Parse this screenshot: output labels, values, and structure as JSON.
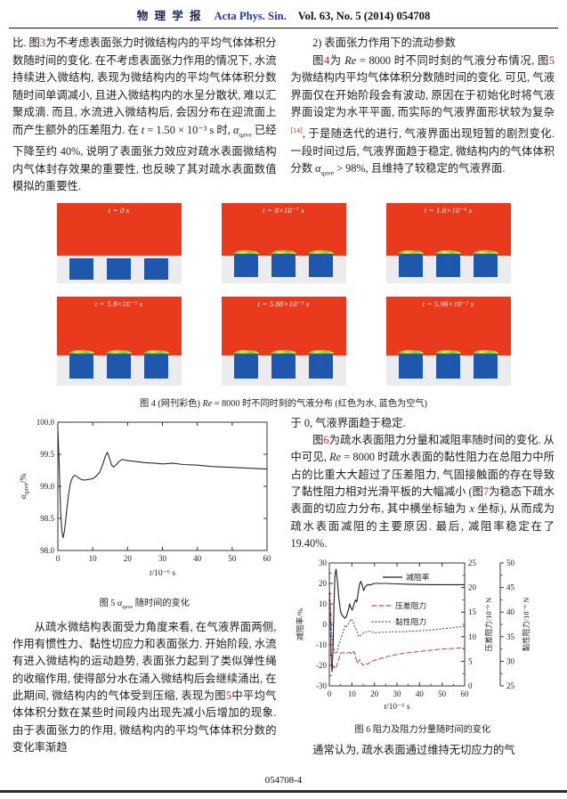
{
  "header": {
    "journal_cn": "物 理 学 报",
    "journal_en": "Acta Phys. Sin.",
    "issue": "Vol. 63, No. 5 (2014)   054708"
  },
  "top_left_par": [
    {
      "t": "比. 图",
      "s": "p"
    },
    {
      "t": "3",
      "s": "r"
    },
    {
      "t": "为不考虑表面张力时微结构内的平均气体体积分数随时间的变化. 在不考虑表面张力作用的情况下, 水流持续进入微结构, 表现为微结构内的平均气体体积分数随时间单调减小, 且进入微结构内的水呈分散状, 难以汇聚成滴. 而且, 水流进入微结构后, 会因分布在迎流面上而产生额外的压差阻力. 在 ",
      "s": "p"
    },
    {
      "t": "t",
      "s": "i"
    },
    {
      "t": " = 1.50 × 10⁻³ s 时, ",
      "s": "p"
    },
    {
      "t": "α",
      "s": "i"
    },
    {
      "t": "qave",
      "s": "sub"
    },
    {
      "t": " 已经下降至约 40%, 说明了表面张力效应对疏水表面微结构内气体封存效果的重要性, 也反映了其对疏水表面数值模拟的重要性.",
      "s": "p"
    }
  ],
  "top_right_par1": [
    {
      "t": "2) 表面张力作用下的流动参数",
      "s": "p"
    }
  ],
  "top_right_par2": [
    {
      "t": "图",
      "s": "p"
    },
    {
      "t": "4",
      "s": "r"
    },
    {
      "t": "为 ",
      "s": "p"
    },
    {
      "t": "Re",
      "s": "i"
    },
    {
      "t": " = 8000 时不同时刻的气液分布情况, 图",
      "s": "p"
    },
    {
      "t": "5",
      "s": "r"
    },
    {
      "t": "为微结构内平均气体体积分数随时间的变化. 可见, 气液界面仅在开始阶段会有波动, 原因在于初始化时将气液界面设定为水平平面, 而实际的气液界面形状较为复杂",
      "s": "p"
    },
    {
      "t": "[14]",
      "s": "rsup"
    },
    {
      "t": ", 于是随迭代的进行, 气液界面出现短暂的剧烈变化. 一段时间过后, 气液界面趋于稳定, 微结构内的气体体积分数 ",
      "s": "p"
    },
    {
      "t": "α",
      "s": "i"
    },
    {
      "t": "qave",
      "s": "sub"
    },
    {
      "t": " > 98%, 且维持了较稳定的气液界面.",
      "s": "p"
    }
  ],
  "figure4": {
    "panels": [
      {
        "label": "t = 0 s"
      },
      {
        "label": "t = 8×10⁻⁷ s"
      },
      {
        "label": "t = 1.6×10⁻⁶ s"
      },
      {
        "label": "t = 5.8×10⁻⁵ s"
      },
      {
        "label": "t = 5.88×10⁻⁵ s"
      },
      {
        "label": "t = 5.96×10⁻⁵ s"
      }
    ],
    "caption": [
      {
        "t": "图 4   (网刊彩色) ",
        "s": "p"
      },
      {
        "t": "Re",
        "s": "i"
      },
      {
        "t": " = 8000 时不同时刻的气液分布 (红色为水, 蓝色为空气)",
        "s": "p"
      }
    ],
    "colors": {
      "water_red": "#ea3a1d",
      "air_blue": "#1f57ac",
      "substrate_gray": "#ececee",
      "interface_green": "#7ec44f",
      "interface_yellow": "#e8e14b"
    }
  },
  "figure5": {
    "caption": [
      {
        "t": "图 5   ",
        "s": "p"
      },
      {
        "t": "α",
        "s": "i"
      },
      {
        "t": "qave",
        "s": "sub"
      },
      {
        "t": " 随时间的变化",
        "s": "p"
      }
    ]
  },
  "bottom_left_par": [
    {
      "t": "从疏水微结构表面受力角度来看, 在气液界面两侧, 作用有惯性力、黏性切应力和表面张力. 开始阶段, 水流有进入微结构的运动趋势, 表面张力起到了类似弹性绳的收缩作用, 使得部分水在涌入微结构后会继续涌出, 在此期间, 微结构内的气体受到压缩, 表现为图",
      "s": "p"
    },
    {
      "t": "5",
      "s": "r"
    },
    {
      "t": "中平均气体体积分数在某些时间段内出现先减小后增加的现象. 由于表面张力的作用, 微结构内的平均气体体积分数的变化率渐趋",
      "s": "p"
    }
  ],
  "bottom_right_par1": [
    {
      "t": "于 0, 气液界面趋于稳定.",
      "s": "p"
    }
  ],
  "bottom_right_par2": [
    {
      "t": "图",
      "s": "p"
    },
    {
      "t": "6",
      "s": "r"
    },
    {
      "t": "为疏水表面阻力分量和减阻率随时间的变化. 从中可见, ",
      "s": "p"
    },
    {
      "t": "Re",
      "s": "i"
    },
    {
      "t": " = 8000 时疏水表面的黏性阻力在总阻力中所占的比重大大超过了压差阻力, 气固接触面的存在导致了黏性阻力相对光滑平板的大幅减小 (图",
      "s": "p"
    },
    {
      "t": "7",
      "s": "r"
    },
    {
      "t": "为稳态下疏水表面的切应力分布, 其中横坐标轴为 ",
      "s": "p"
    },
    {
      "t": "x",
      "s": "i"
    },
    {
      "t": " 坐标), 从而成为疏水表面减阻的主要原因. 最后, 减阻率稳定在了 19.40%.",
      "s": "p"
    }
  ],
  "figure6": {
    "caption": [
      {
        "t": "图 6   阻力及阻力分量随时间的变化",
        "s": "p"
      }
    ]
  },
  "bottom_right_par3": [
    {
      "t": "通常认为, 疏水表面通过维持无切应力的气",
      "s": "p"
    }
  ],
  "footer": {
    "page_label": "054708-4"
  },
  "chart_data": [
    {
      "id": "fig5",
      "type": "line",
      "xlabel": "t/10⁻⁶ s",
      "ylabel_parts": [
        {
          "t": "α",
          "s": "i"
        },
        {
          "t": "qave",
          "s": "sub"
        },
        {
          "t": "/%",
          "s": "p"
        }
      ],
      "xlim": [
        0,
        60
      ],
      "ylim": [
        98.0,
        100.0
      ],
      "xtick": 10,
      "ytick": 0.5,
      "grid": false,
      "series": [
        {
          "name": "αqave",
          "color": "#2b2b2b",
          "x": [
            0,
            0.4,
            0.8,
            1.2,
            1.5,
            1.9,
            2.4,
            3.0,
            3.6,
            4.2,
            4.8,
            5.4,
            6,
            7,
            8,
            9,
            10,
            11,
            12,
            13,
            13.6,
            14.2,
            14.8,
            15.4,
            16,
            16.8,
            17.6,
            18.4,
            19.2,
            20,
            22,
            25,
            28,
            30,
            33,
            36,
            40,
            44,
            48,
            52,
            56,
            60
          ],
          "y": [
            99.9,
            99.3,
            98.6,
            98.28,
            98.2,
            98.3,
            98.55,
            98.85,
            99.05,
            99.14,
            99.17,
            99.16,
            99.13,
            99.1,
            99.1,
            99.11,
            99.12,
            99.16,
            99.22,
            99.36,
            99.47,
            99.53,
            99.44,
            99.33,
            99.3,
            99.34,
            99.39,
            99.42,
            99.41,
            99.4,
            99.39,
            99.37,
            99.36,
            99.35,
            99.36,
            99.34,
            99.33,
            99.31,
            99.3,
            99.29,
            99.28,
            99.27
          ]
        }
      ]
    },
    {
      "id": "fig6",
      "type": "line",
      "xlabel": "t/10⁻⁶ s",
      "xlim": [
        0,
        60
      ],
      "xtick": 10,
      "grid": false,
      "legend_position": "inside-top",
      "axes": {
        "left": {
          "label": "减阻率/%",
          "lim": [
            -30,
            30
          ],
          "tick": 10
        },
        "mid": {
          "label": "压差阻力/10⁻⁶ N",
          "lim": [
            0,
            25
          ],
          "tick": 5
        },
        "right": {
          "label": "黏性阻力/10⁻⁶ N",
          "lim": [
            25,
            50
          ],
          "tick": 5
        }
      },
      "series": [
        {
          "name": "减阻率",
          "axis": "left",
          "dash": "none",
          "color": "#1c1c1c",
          "x": [
            0,
            0.4,
            0.8,
            1.2,
            1.6,
            2.0,
            2.5,
            3.0,
            3.5,
            4.2,
            5,
            6,
            7,
            7.6,
            8.4,
            9,
            9.6,
            10.2,
            11,
            11.6,
            12.2,
            13,
            13.5,
            14,
            14.6,
            15.2,
            16,
            17,
            18,
            20,
            22,
            25,
            30,
            35,
            40,
            45,
            50,
            55,
            60
          ],
          "y": [
            20,
            5,
            -15,
            -23,
            -13,
            8,
            24,
            27,
            22,
            13,
            6,
            4,
            3,
            4,
            7,
            10,
            8,
            7,
            10,
            12,
            11,
            17,
            20,
            21,
            19,
            16.5,
            18.5,
            19.5,
            19.2,
            20,
            20,
            20,
            19.8,
            19.6,
            19.5,
            19.4,
            19.4,
            19.4,
            19.4
          ]
        },
        {
          "name": "压差阻力",
          "axis": "mid",
          "dash": "5 3",
          "color": "#c94f4b",
          "x": [
            0,
            0.5,
            1,
            1.5,
            2,
            2.5,
            3,
            4,
            5,
            6,
            7,
            8,
            9,
            10,
            10.8,
            11.5,
            12.2,
            13,
            13.6,
            14.2,
            15,
            16,
            17,
            18,
            20,
            23,
            26,
            30,
            34,
            38,
            42,
            46,
            50,
            55,
            60
          ],
          "y": [
            20,
            12,
            6.5,
            4.2,
            3.6,
            4.0,
            3.7,
            5.2,
            6.6,
            6.8,
            6.6,
            6.7,
            6.8,
            6.5,
            7.0,
            6.4,
            4.6,
            5.0,
            5.3,
            4.6,
            4.2,
            4.6,
            4.4,
            4.8,
            5.2,
            5.6,
            6.0,
            6.4,
            6.7,
            6.9,
            7.1,
            7.3,
            7.5,
            7.6,
            7.8
          ]
        },
        {
          "name": "黏性阻力",
          "axis": "right",
          "dash": "1.2 2.6",
          "color": "#3a5ba8",
          "x": [
            0,
            0.5,
            1,
            1.5,
            2,
            2.5,
            3,
            3.5,
            4,
            5,
            6,
            7,
            7.6,
            8.4,
            9,
            9.6,
            10.4,
            11,
            12,
            13,
            14,
            15,
            16,
            18,
            20,
            24,
            28,
            32,
            36,
            40,
            44,
            48,
            52,
            56,
            60
          ],
          "y": [
            45.5,
            41,
            36,
            33.5,
            32.5,
            31.8,
            31.5,
            32,
            33,
            34.5,
            35.8,
            37.3,
            37.0,
            37.6,
            38.0,
            38.6,
            38.2,
            37.4,
            36.4,
            35.0,
            35.3,
            35.7,
            35.9,
            36.1,
            35.8,
            35.9,
            36.0,
            36.0,
            36.1,
            36.2,
            36.3,
            36.5,
            36.7,
            36.9,
            37.1
          ]
        }
      ]
    }
  ]
}
